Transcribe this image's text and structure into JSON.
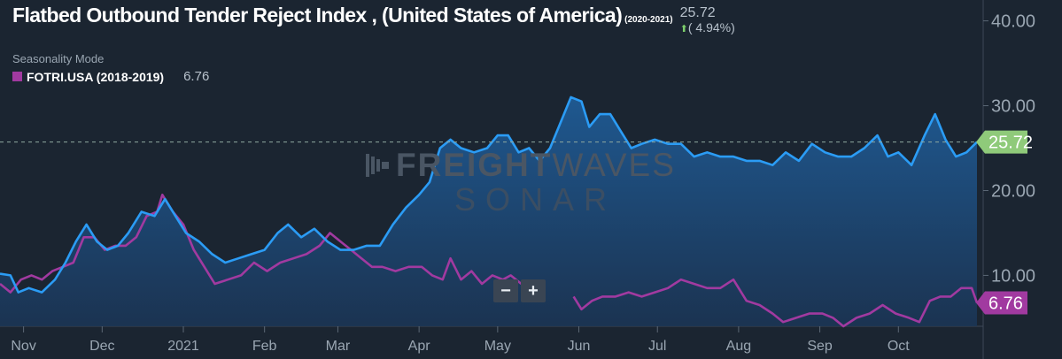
{
  "header": {
    "title": "Flatbed Outbound Tender Reject Index , (United States of America)",
    "period": "(2020-2021)",
    "current_value": "25.72",
    "change": "( 4.94%)",
    "mode_label": "Seasonality Mode",
    "legend_label": "FOTRI.USA (2018-2019)",
    "legend_value": "6.76"
  },
  "watermark": {
    "brand_bold": "FREIGHT",
    "brand_light": "WAVES",
    "product": "SONAR"
  },
  "zoom": {
    "minus": "−",
    "plus": "+"
  },
  "colors": {
    "background": "#1b2531",
    "primary": "#2b9cf5",
    "comparison": "#a13aa0",
    "primary_badge": "#8fca7a",
    "comparison_badge": "#a13aa0",
    "axis_text": "#9aa6b2"
  },
  "chart_data": {
    "type": "area",
    "x_format": "date",
    "x_ticks": [
      {
        "date": "2020-11-01",
        "label": "Nov"
      },
      {
        "date": "2020-12-01",
        "label": "Dec"
      },
      {
        "date": "2021-01-01",
        "label": "2021"
      },
      {
        "date": "2021-02-01",
        "label": "Feb"
      },
      {
        "date": "2021-03-01",
        "label": "Mar"
      },
      {
        "date": "2021-04-01",
        "label": "Apr"
      },
      {
        "date": "2021-05-01",
        "label": "May"
      },
      {
        "date": "2021-06-01",
        "label": "Jun"
      },
      {
        "date": "2021-07-01",
        "label": "Jul"
      },
      {
        "date": "2021-08-01",
        "label": "Aug"
      },
      {
        "date": "2021-09-01",
        "label": "Sep"
      },
      {
        "date": "2021-10-01",
        "label": "Oct"
      }
    ],
    "x_range": [
      "2020-10-23",
      "2021-10-31"
    ],
    "y_ticks": [
      "10.00",
      "20.00",
      "30.00",
      "40.00"
    ],
    "ylim": [
      4,
      41
    ],
    "reference_line": 25.72,
    "series": [
      {
        "name": "",
        "style": "area",
        "badge": "25.72",
        "points": [
          [
            "2020-10-23",
            10.2
          ],
          [
            "2020-10-27",
            10.0
          ],
          [
            "2020-10-30",
            8.0
          ],
          [
            "2020-11-03",
            8.5
          ],
          [
            "2020-11-08",
            8.0
          ],
          [
            "2020-11-13",
            9.5
          ],
          [
            "2020-11-17",
            11.5
          ],
          [
            "2020-11-21",
            14.0
          ],
          [
            "2020-11-25",
            16.0
          ],
          [
            "2020-11-29",
            14.0
          ],
          [
            "2020-12-03",
            13.0
          ],
          [
            "2020-12-07",
            13.5
          ],
          [
            "2020-12-11",
            15.0
          ],
          [
            "2020-12-16",
            17.5
          ],
          [
            "2020-12-21",
            17.0
          ],
          [
            "2020-12-25",
            19.0
          ],
          [
            "2020-12-29",
            17.0
          ],
          [
            "2021-01-02",
            15.0
          ],
          [
            "2021-01-07",
            14.0
          ],
          [
            "2021-01-12",
            12.5
          ],
          [
            "2021-01-17",
            11.5
          ],
          [
            "2021-01-22",
            12.0
          ],
          [
            "2021-01-27",
            12.5
          ],
          [
            "2021-02-01",
            13.0
          ],
          [
            "2021-02-06",
            15.0
          ],
          [
            "2021-02-10",
            16.0
          ],
          [
            "2021-02-15",
            14.5
          ],
          [
            "2021-02-20",
            15.5
          ],
          [
            "2021-02-25",
            14.0
          ],
          [
            "2021-03-02",
            13.0
          ],
          [
            "2021-03-07",
            13.0
          ],
          [
            "2021-03-12",
            13.5
          ],
          [
            "2021-03-17",
            13.5
          ],
          [
            "2021-03-22",
            16.0
          ],
          [
            "2021-03-27",
            18.0
          ],
          [
            "2021-04-01",
            19.5
          ],
          [
            "2021-04-05",
            21.0
          ],
          [
            "2021-04-09",
            25.0
          ],
          [
            "2021-04-13",
            26.0
          ],
          [
            "2021-04-17",
            25.0
          ],
          [
            "2021-04-22",
            24.5
          ],
          [
            "2021-04-27",
            25.0
          ],
          [
            "2021-05-01",
            26.5
          ],
          [
            "2021-05-05",
            26.5
          ],
          [
            "2021-05-09",
            24.5
          ],
          [
            "2021-05-13",
            25.0
          ],
          [
            "2021-05-17",
            23.5
          ],
          [
            "2021-05-21",
            25.0
          ],
          [
            "2021-05-25",
            28.0
          ],
          [
            "2021-05-29",
            31.0
          ],
          [
            "2021-06-02",
            30.5
          ],
          [
            "2021-06-05",
            27.5
          ],
          [
            "2021-06-09",
            29.0
          ],
          [
            "2021-06-13",
            29.0
          ],
          [
            "2021-06-17",
            27.0
          ],
          [
            "2021-06-21",
            25.0
          ],
          [
            "2021-06-25",
            25.5
          ],
          [
            "2021-06-30",
            26.0
          ],
          [
            "2021-07-05",
            25.5
          ],
          [
            "2021-07-10",
            25.5
          ],
          [
            "2021-07-15",
            24.0
          ],
          [
            "2021-07-20",
            24.5
          ],
          [
            "2021-07-25",
            24.0
          ],
          [
            "2021-07-30",
            24.0
          ],
          [
            "2021-08-04",
            23.5
          ],
          [
            "2021-08-09",
            23.5
          ],
          [
            "2021-08-14",
            23.0
          ],
          [
            "2021-08-19",
            24.5
          ],
          [
            "2021-08-24",
            23.5
          ],
          [
            "2021-08-29",
            25.5
          ],
          [
            "2021-09-03",
            24.5
          ],
          [
            "2021-09-08",
            24.0
          ],
          [
            "2021-09-13",
            24.0
          ],
          [
            "2021-09-18",
            25.0
          ],
          [
            "2021-09-23",
            26.5
          ],
          [
            "2021-09-27",
            24.0
          ],
          [
            "2021-10-01",
            24.5
          ],
          [
            "2021-10-06",
            23.0
          ],
          [
            "2021-10-11",
            26.5
          ],
          [
            "2021-10-15",
            29.0
          ],
          [
            "2021-10-19",
            26.0
          ],
          [
            "2021-10-23",
            24.0
          ],
          [
            "2021-10-27",
            24.5
          ],
          [
            "2021-10-31",
            25.72
          ]
        ]
      },
      {
        "name": "FOTRI.USA (2018-2019)",
        "style": "line",
        "badge": "6.76",
        "segments": [
          [
            [
              "2020-10-23",
              9.0
            ],
            [
              "2020-10-27",
              8.0
            ],
            [
              "2020-10-31",
              9.5
            ],
            [
              "2020-11-04",
              10.0
            ],
            [
              "2020-11-08",
              9.5
            ],
            [
              "2020-11-12",
              10.5
            ],
            [
              "2020-11-16",
              11.0
            ],
            [
              "2020-11-20",
              11.5
            ],
            [
              "2020-11-24",
              14.5
            ],
            [
              "2020-11-28",
              14.5
            ],
            [
              "2020-12-02",
              13.0
            ],
            [
              "2020-12-06",
              13.5
            ],
            [
              "2020-12-10",
              13.5
            ],
            [
              "2020-12-14",
              14.5
            ],
            [
              "2020-12-18",
              17.0
            ],
            [
              "2020-12-22",
              17.5
            ],
            [
              "2020-12-24",
              19.5
            ],
            [
              "2020-12-28",
              17.5
            ],
            [
              "2021-01-01",
              16.0
            ],
            [
              "2021-01-05",
              13.0
            ],
            [
              "2021-01-09",
              11.0
            ],
            [
              "2021-01-13",
              9.0
            ],
            [
              "2021-01-18",
              9.5
            ],
            [
              "2021-01-23",
              10.0
            ],
            [
              "2021-01-28",
              11.5
            ],
            [
              "2021-02-02",
              10.5
            ],
            [
              "2021-02-07",
              11.5
            ],
            [
              "2021-02-12",
              12.0
            ],
            [
              "2021-02-17",
              12.5
            ],
            [
              "2021-02-22",
              13.5
            ],
            [
              "2021-02-26",
              15.0
            ],
            [
              "2021-03-02",
              14.0
            ],
            [
              "2021-03-06",
              13.0
            ],
            [
              "2021-03-10",
              12.0
            ],
            [
              "2021-03-14",
              11.0
            ],
            [
              "2021-03-18",
              11.0
            ],
            [
              "2021-03-23",
              10.5
            ],
            [
              "2021-03-28",
              11.0
            ],
            [
              "2021-04-02",
              11.0
            ],
            [
              "2021-04-06",
              10.0
            ],
            [
              "2021-04-10",
              9.5
            ],
            [
              "2021-04-13",
              12.0
            ],
            [
              "2021-04-17",
              9.5
            ],
            [
              "2021-04-21",
              10.5
            ],
            [
              "2021-04-25",
              9.0
            ],
            [
              "2021-04-29",
              10.0
            ],
            [
              "2021-05-03",
              9.5
            ],
            [
              "2021-05-06",
              10.0
            ],
            [
              "2021-05-10",
              9.0
            ]
          ],
          [
            [
              "2021-05-30",
              7.5
            ],
            [
              "2021-06-02",
              6.0
            ],
            [
              "2021-06-06",
              7.0
            ],
            [
              "2021-06-10",
              7.5
            ],
            [
              "2021-06-15",
              7.5
            ],
            [
              "2021-06-20",
              8.0
            ],
            [
              "2021-06-25",
              7.5
            ],
            [
              "2021-06-30",
              8.0
            ],
            [
              "2021-07-05",
              8.5
            ],
            [
              "2021-07-10",
              9.5
            ],
            [
              "2021-07-15",
              9.0
            ],
            [
              "2021-07-20",
              8.5
            ],
            [
              "2021-07-25",
              8.5
            ],
            [
              "2021-07-30",
              9.5
            ],
            [
              "2021-08-04",
              7.0
            ],
            [
              "2021-08-09",
              6.5
            ],
            [
              "2021-08-14",
              5.5
            ],
            [
              "2021-08-18",
              4.5
            ],
            [
              "2021-08-23",
              5.0
            ],
            [
              "2021-08-28",
              5.5
            ],
            [
              "2021-09-02",
              5.5
            ],
            [
              "2021-09-06",
              5.0
            ],
            [
              "2021-09-10",
              4.0
            ],
            [
              "2021-09-15",
              5.0
            ],
            [
              "2021-09-20",
              5.5
            ],
            [
              "2021-09-25",
              6.5
            ],
            [
              "2021-09-30",
              5.5
            ],
            [
              "2021-10-05",
              5.0
            ],
            [
              "2021-10-09",
              4.5
            ],
            [
              "2021-10-13",
              7.0
            ],
            [
              "2021-10-17",
              7.5
            ],
            [
              "2021-10-21",
              7.5
            ],
            [
              "2021-10-25",
              8.5
            ],
            [
              "2021-10-29",
              8.5
            ],
            [
              "2021-10-31",
              6.76
            ]
          ]
        ]
      }
    ]
  }
}
